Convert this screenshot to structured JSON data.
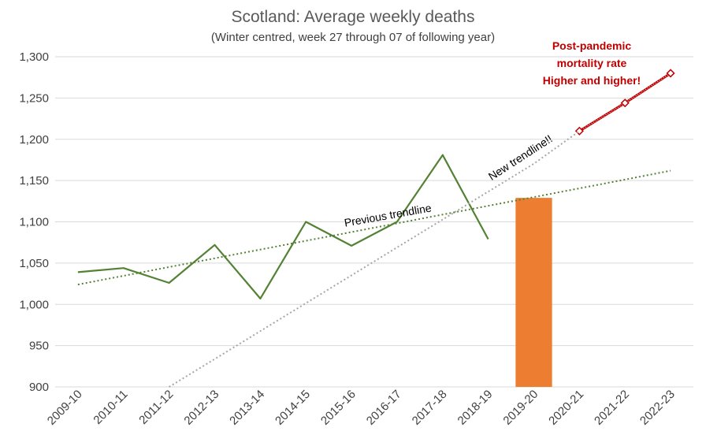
{
  "chart_data": {
    "type": "line",
    "title": "Scotland: Average weekly deaths",
    "subtitle": "(Winter centred, week 27 through 07 of following year)",
    "xlabel": "",
    "ylabel": "",
    "ylim": [
      900,
      1300
    ],
    "yticks": [
      900,
      950,
      1000,
      1050,
      1100,
      1150,
      1200,
      1250,
      1300
    ],
    "ytick_labels": [
      "900",
      "950",
      "1,000",
      "1,050",
      "1,100",
      "1,150",
      "1,200",
      "1,250",
      "1,300"
    ],
    "grid": true,
    "categories": [
      "2009-10",
      "2010-11",
      "2011-12",
      "2012-13",
      "2013-14",
      "2014-15",
      "2015-16",
      "2016-17",
      "2017-18",
      "2018-19",
      "2019-20",
      "2020-21",
      "2021-22",
      "2022-23"
    ],
    "series": [
      {
        "kind": "line",
        "color": "#548235",
        "values": [
          1039,
          1044,
          1026,
          1072,
          1007,
          1100,
          1071,
          1100,
          1181,
          1079,
          null,
          null,
          null,
          null
        ]
      },
      {
        "kind": "bar",
        "color": "#ed7d31",
        "values": [
          null,
          null,
          null,
          null,
          null,
          null,
          null,
          null,
          null,
          null,
          1129,
          null,
          null,
          null
        ]
      },
      {
        "kind": "line-markers",
        "color": "#c00000",
        "values": [
          null,
          null,
          null,
          null,
          null,
          null,
          null,
          null,
          null,
          null,
          null,
          1210,
          1244,
          1280
        ]
      },
      {
        "kind": "trend",
        "color": "#548235",
        "values": [
          1024,
          1034.6,
          1045.2,
          1055.8,
          1066.4,
          1077,
          1087.6,
          1098.2,
          1108.8,
          1119.4,
          1130,
          1140.6,
          1151.2,
          1162
        ]
      },
      {
        "kind": "trend",
        "color": "#a6a6a6",
        "values": [
          null,
          null,
          900,
          933.8,
          967.6,
          1001.4,
          1035.2,
          1069,
          1102.8,
          1136.6,
          1170.4,
          1210,
          null,
          null
        ]
      }
    ],
    "annotations": [
      {
        "text": "Previous trendline",
        "color": "#000000"
      },
      {
        "text": "New trendline!!",
        "color": "#000000"
      },
      {
        "text": "Post-pandemic",
        "color": "#c00000"
      },
      {
        "text": "mortality rate",
        "color": "#c00000"
      },
      {
        "text": "Higher and higher!",
        "color": "#c00000"
      }
    ]
  }
}
